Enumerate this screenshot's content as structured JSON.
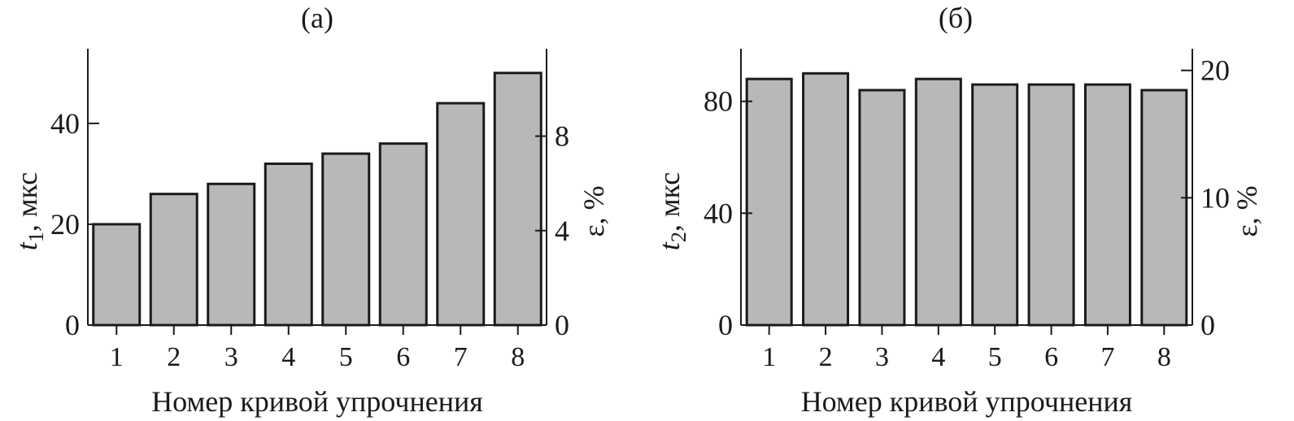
{
  "chart_data": [
    {
      "type": "bar",
      "title": "(а)",
      "categories": [
        "1",
        "2",
        "3",
        "4",
        "5",
        "6",
        "7",
        "8"
      ],
      "values": [
        20,
        26,
        28,
        32,
        34,
        36,
        44,
        50
      ],
      "xlabel": "Номер кривой упрочнения",
      "ylabel_main": "t",
      "ylabel_sub": "1",
      "ylabel_rest": ", мкс",
      "ylim": [
        0,
        54.8
      ],
      "yticks": [
        0,
        20,
        40
      ],
      "y2label": "ε, %",
      "y2lim": [
        0,
        11.7
      ],
      "y2ticks": [
        0,
        4,
        8
      ],
      "grid": false,
      "bar_color": "#b7b8ba",
      "edge_color": "#1a1a1a"
    },
    {
      "type": "bar",
      "title": "(б)",
      "categories": [
        "1",
        "2",
        "3",
        "4",
        "5",
        "6",
        "7",
        "8"
      ],
      "values": [
        88,
        90,
        84,
        88,
        86,
        86,
        86,
        84
      ],
      "xlabel": "Номер кривой упрочнения",
      "ylabel_main": "t",
      "ylabel_sub": "2",
      "ylabel_rest": ", мкс",
      "ylim": [
        0,
        98.8
      ],
      "yticks": [
        0,
        40,
        80
      ],
      "y2label": "ε, %",
      "y2lim": [
        0,
        21.7
      ],
      "y2ticks": [
        0,
        10,
        20
      ],
      "grid": false,
      "bar_color": "#b7b8ba",
      "edge_color": "#1a1a1a"
    }
  ]
}
